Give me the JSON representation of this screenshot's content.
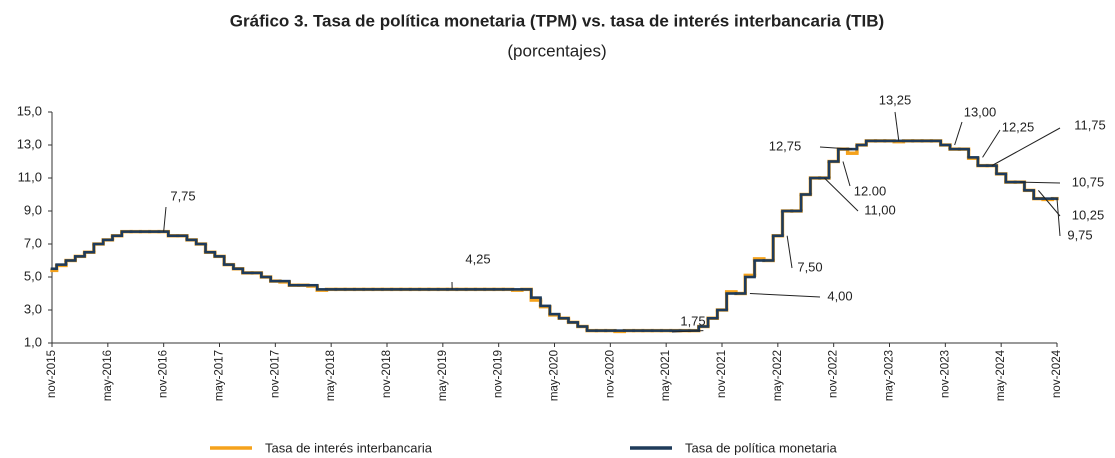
{
  "chart_data": {
    "type": "line",
    "title": "Gráfico 3. Tasa de política monetaria (TPM) vs. tasa de interés interbancaria (TIB)",
    "subtitle": "(porcentajes)",
    "categories": [
      "nov-2015",
      null,
      null,
      null,
      null,
      null,
      "may-2016",
      null,
      null,
      null,
      null,
      null,
      "nov-2016",
      null,
      null,
      null,
      null,
      null,
      "may-2017",
      null,
      null,
      null,
      null,
      null,
      "nov-2017",
      null,
      null,
      null,
      null,
      null,
      "may-2018",
      null,
      null,
      null,
      null,
      null,
      "nov-2018",
      null,
      null,
      null,
      null,
      null,
      "may-2019",
      null,
      null,
      null,
      null,
      null,
      "nov-2019",
      null,
      null,
      null,
      null,
      null,
      "may-2020",
      null,
      null,
      null,
      null,
      null,
      "nov-2020",
      null,
      null,
      null,
      null,
      null,
      "may-2021",
      null,
      null,
      null,
      null,
      null,
      "nov-2021",
      null,
      null,
      null,
      null,
      null,
      "may-2022",
      null,
      null,
      null,
      null,
      null,
      "nov-2022",
      null,
      null,
      null,
      null,
      null,
      "may-2023",
      null,
      null,
      null,
      null,
      null,
      "nov-2023",
      null,
      null,
      null,
      null,
      null,
      "may-2024",
      null,
      null,
      null,
      null,
      null,
      "nov-2024"
    ],
    "series": [
      {
        "name": "Tasa de interés interbancaria",
        "color": "#f5a21b",
        "values": [
          5.4,
          5.7,
          6.0,
          6.25,
          6.5,
          7.0,
          7.25,
          7.5,
          7.75,
          7.75,
          7.75,
          7.75,
          7.75,
          7.5,
          7.5,
          7.25,
          7.0,
          6.5,
          6.25,
          5.75,
          5.5,
          5.25,
          5.25,
          5.0,
          4.75,
          4.7,
          4.5,
          4.5,
          4.45,
          4.2,
          4.25,
          4.25,
          4.25,
          4.25,
          4.25,
          4.25,
          4.25,
          4.25,
          4.25,
          4.25,
          4.25,
          4.25,
          4.25,
          4.25,
          4.25,
          4.25,
          4.25,
          4.25,
          4.25,
          4.25,
          4.2,
          4.25,
          3.6,
          3.2,
          2.7,
          2.5,
          2.25,
          2.0,
          1.75,
          1.75,
          1.75,
          1.7,
          1.75,
          1.75,
          1.75,
          1.75,
          1.75,
          1.75,
          1.75,
          1.75,
          2.0,
          2.5,
          3.0,
          4.1,
          4.0,
          5.1,
          6.1,
          6.0,
          7.5,
          9.0,
          9.0,
          10.0,
          11.0,
          11.0,
          12.0,
          12.75,
          12.5,
          13.0,
          13.25,
          13.25,
          13.25,
          13.2,
          13.25,
          13.25,
          13.25,
          13.25,
          13.0,
          12.75,
          12.75,
          12.2,
          11.75,
          11.75,
          11.25,
          10.75,
          10.75,
          10.25,
          9.75,
          9.7,
          9.75
        ]
      },
      {
        "name": "Tasa de política monetaria",
        "color": "#1f3b5a",
        "values": [
          5.5,
          5.75,
          6.0,
          6.25,
          6.5,
          7.0,
          7.25,
          7.5,
          7.75,
          7.75,
          7.75,
          7.75,
          7.75,
          7.5,
          7.5,
          7.25,
          7.0,
          6.5,
          6.25,
          5.75,
          5.5,
          5.25,
          5.25,
          5.0,
          4.75,
          4.75,
          4.5,
          4.5,
          4.5,
          4.25,
          4.25,
          4.25,
          4.25,
          4.25,
          4.25,
          4.25,
          4.25,
          4.25,
          4.25,
          4.25,
          4.25,
          4.25,
          4.25,
          4.25,
          4.25,
          4.25,
          4.25,
          4.25,
          4.25,
          4.25,
          4.25,
          4.25,
          3.75,
          3.25,
          2.75,
          2.5,
          2.25,
          2.0,
          1.75,
          1.75,
          1.75,
          1.75,
          1.75,
          1.75,
          1.75,
          1.75,
          1.75,
          1.75,
          1.75,
          1.75,
          2.0,
          2.5,
          3.0,
          4.0,
          4.0,
          5.0,
          6.0,
          6.0,
          7.5,
          9.0,
          9.0,
          10.0,
          11.0,
          11.0,
          12.0,
          12.75,
          12.75,
          13.0,
          13.25,
          13.25,
          13.25,
          13.25,
          13.25,
          13.25,
          13.25,
          13.25,
          13.0,
          12.75,
          12.75,
          12.25,
          11.75,
          11.75,
          11.25,
          10.75,
          10.75,
          10.25,
          9.75,
          9.75,
          9.75
        ]
      }
    ],
    "ylim": [
      1,
      15
    ],
    "yticks": [
      {
        "value": 1,
        "label": "1,0"
      },
      {
        "value": 3,
        "label": "3,0"
      },
      {
        "value": 5,
        "label": "5,0"
      },
      {
        "value": 7,
        "label": "7,0"
      },
      {
        "value": 9,
        "label": "9,0"
      },
      {
        "value": 11,
        "label": "11,0"
      },
      {
        "value": 13,
        "label": "13,0"
      },
      {
        "value": 15,
        "label": "15,0"
      }
    ],
    "annotations": [
      {
        "label": "7,75",
        "value": 7.75
      },
      {
        "label": "4,25",
        "value": 4.25
      },
      {
        "label": "1,75",
        "value": 1.75
      },
      {
        "label": "4,00",
        "value": 4.0
      },
      {
        "label": "7,50",
        "value": 7.5
      },
      {
        "label": "11,00",
        "value": 11.0
      },
      {
        "label": "12.00",
        "value": 12.0
      },
      {
        "label": "12,75",
        "value": 12.75
      },
      {
        "label": "13,25",
        "value": 13.25
      },
      {
        "label": "13,00",
        "value": 13.0
      },
      {
        "label": "12,25",
        "value": 12.25
      },
      {
        "label": "11,75",
        "value": 11.75
      },
      {
        "label": "10,75",
        "value": 10.75
      },
      {
        "label": "10,25",
        "value": 10.25
      },
      {
        "label": "9,75",
        "value": 9.75
      }
    ],
    "legend": "bottom"
  }
}
